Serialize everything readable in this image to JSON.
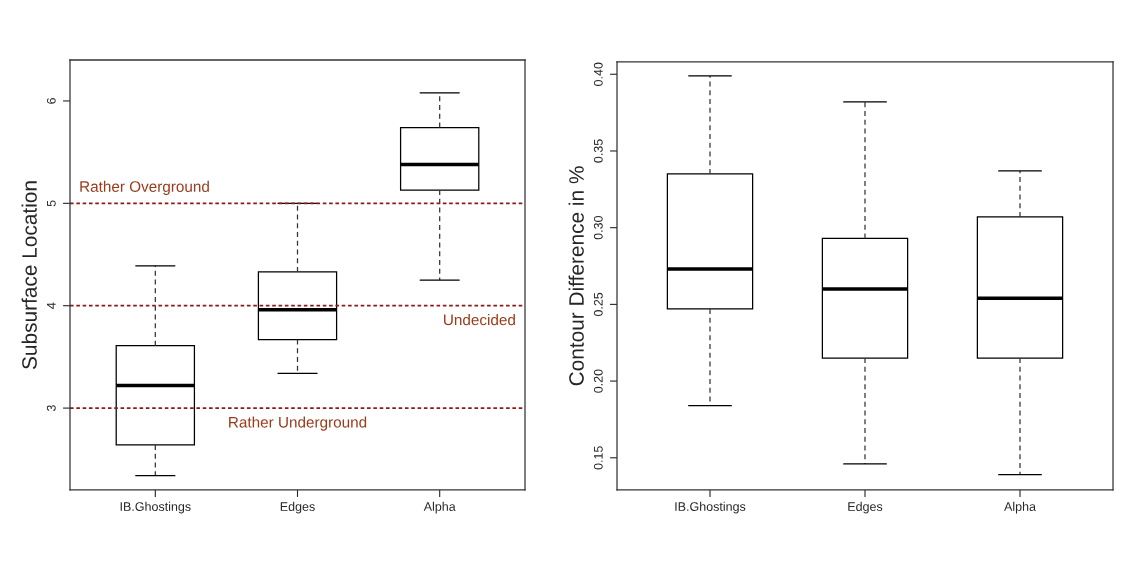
{
  "chart_data": [
    {
      "type": "box",
      "ylabel": "Subsurface Location",
      "categories": [
        "IB.Ghostings",
        "Edges",
        "Alpha"
      ],
      "boxes": [
        {
          "low": 2.34,
          "q1": 2.64,
          "median": 3.22,
          "q3": 3.61,
          "high": 4.39
        },
        {
          "low": 3.34,
          "q1": 3.67,
          "median": 3.96,
          "q3": 4.33,
          "high": 5.0
        },
        {
          "low": 4.25,
          "q1": 5.13,
          "median": 5.38,
          "q3": 5.74,
          "high": 6.08
        }
      ],
      "ylim": [
        2.2,
        6.4
      ],
      "yticks": [
        3,
        4,
        5,
        6
      ],
      "grid": false,
      "ref_lines": [
        {
          "axis": "y",
          "value": 5,
          "label": "Rather Overground",
          "color": "#8b1a1a",
          "line_style": "dotted"
        },
        {
          "axis": "y",
          "value": 4,
          "label": "Undecided",
          "color": "#8b1a1a",
          "line_style": "dotted"
        },
        {
          "axis": "y",
          "value": 3,
          "label": "Rather Underground",
          "color": "#8b1a1a",
          "line_style": "dotted"
        }
      ]
    },
    {
      "type": "box",
      "ylabel": "Contour Difference in %",
      "categories": [
        "IB.Ghostings",
        "Edges",
        "Alpha"
      ],
      "boxes": [
        {
          "low": 0.184,
          "q1": 0.247,
          "median": 0.273,
          "q3": 0.335,
          "high": 0.399
        },
        {
          "low": 0.146,
          "q1": 0.215,
          "median": 0.26,
          "q3": 0.293,
          "high": 0.382
        },
        {
          "low": 0.139,
          "q1": 0.215,
          "median": 0.254,
          "q3": 0.307,
          "high": 0.337
        }
      ],
      "ylim": [
        0.129,
        0.408
      ],
      "yticks": [
        {
          "value": 0.15,
          "label": "0.15"
        },
        {
          "value": 0.2,
          "label": "0.20"
        },
        {
          "value": 0.25,
          "label": "0.25"
        },
        {
          "value": 0.3,
          "label": "0.30"
        },
        {
          "value": 0.35,
          "label": "0.35"
        },
        {
          "value": 0.4,
          "label": "0.40"
        }
      ],
      "grid": false
    }
  ]
}
